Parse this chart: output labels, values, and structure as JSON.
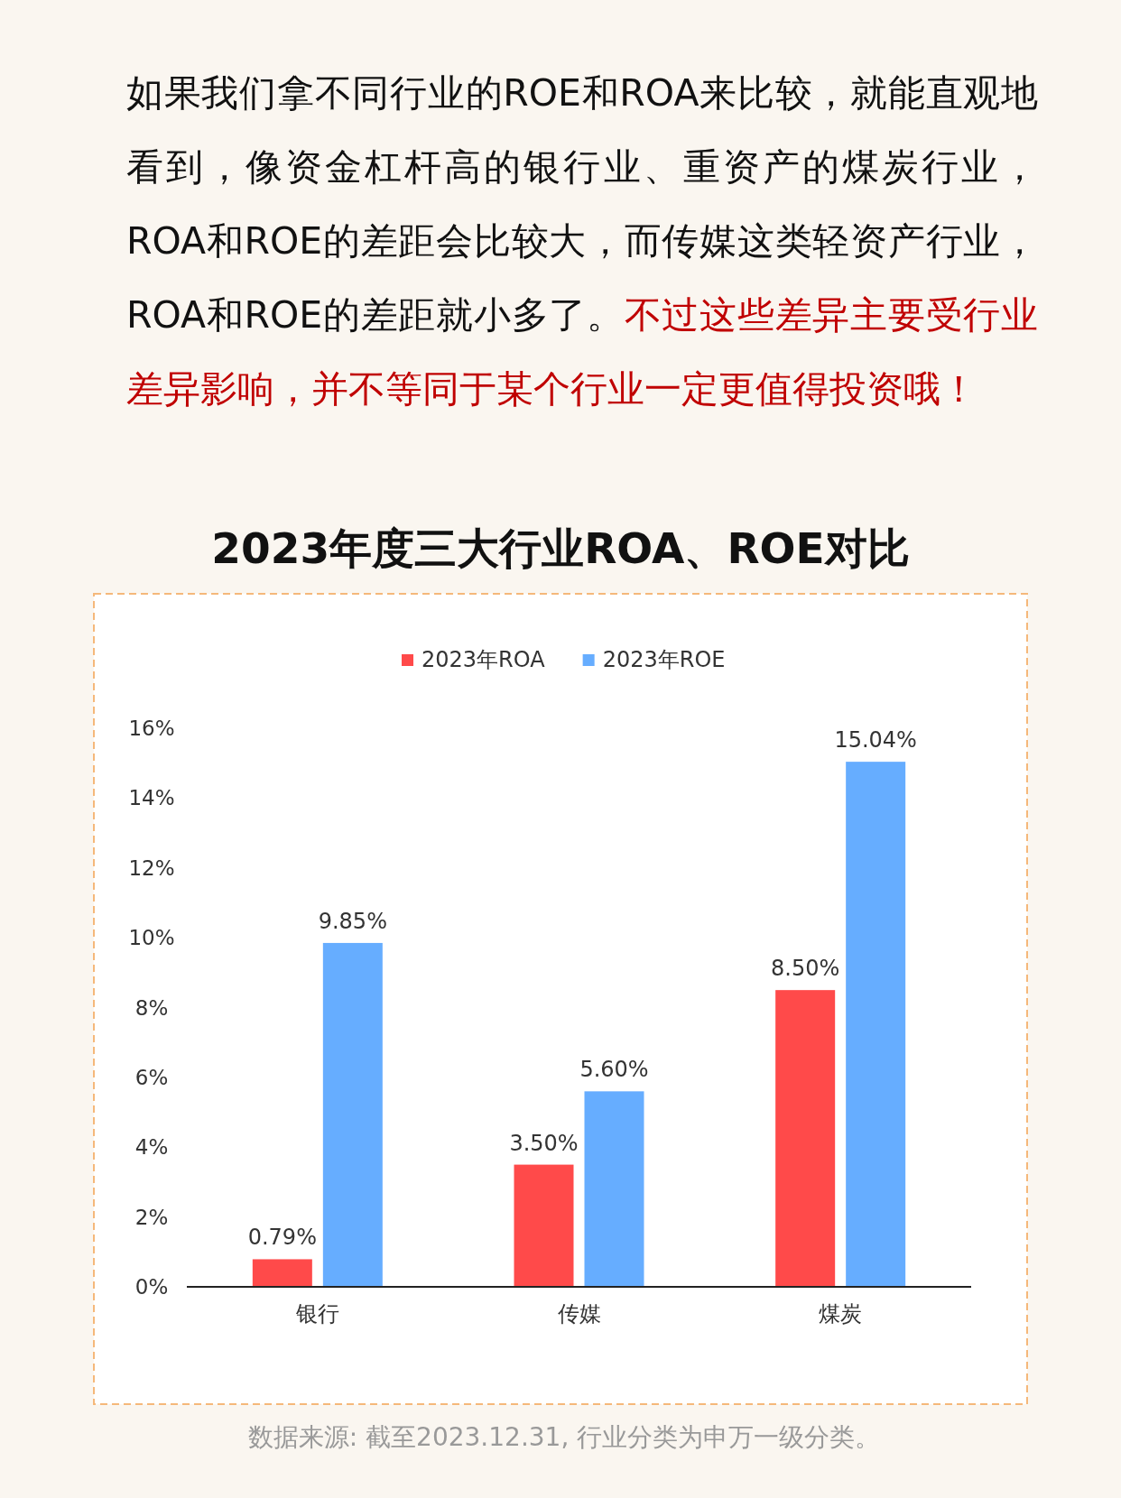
{
  "chart_data": {
    "type": "bar",
    "title": "2023年度三大行业ROA、ROE对比",
    "categories": [
      "银行",
      "传媒",
      "煤炭"
    ],
    "series": [
      {
        "name": "2023年ROA",
        "color": "#ff4a4a",
        "values": [
          0.79,
          3.5,
          8.5
        ],
        "value_labels": [
          "0.79%",
          "3.50%",
          "8.50%"
        ]
      },
      {
        "name": "2023年ROE",
        "color": "#66adff",
        "values": [
          9.85,
          5.6,
          15.04
        ],
        "value_labels": [
          "9.85%",
          "5.60%",
          "15.04%"
        ]
      }
    ],
    "ylim": [
      0,
      16
    ],
    "yticks": [
      {
        "value": 0,
        "label": "0%"
      },
      {
        "value": 2,
        "label": "2%"
      },
      {
        "value": 4,
        "label": "4%"
      },
      {
        "value": 6,
        "label": "6%"
      },
      {
        "value": 8,
        "label": "8%"
      },
      {
        "value": 10,
        "label": "10%"
      },
      {
        "value": 12,
        "label": "12%"
      },
      {
        "value": 14,
        "label": "14%"
      },
      {
        "value": 16,
        "label": "16%"
      }
    ],
    "legend": "top",
    "annotations": [
      "如果我们拿不同行业的ROE和ROA来比较，就能直观地看到，像资金杠杆高的银行业、重资产的煤炭行业，ROA和ROE的差距会比较大，而传媒这类轻资产行业，ROA和ROE的差距就小多了。",
      "不过这些差异主要受行业差异影响，并不等同于某个行业一定更值得投资哦！",
      "数据来源: 截至2023.12.31, 行业分类为申万一级分类。"
    ]
  }
}
